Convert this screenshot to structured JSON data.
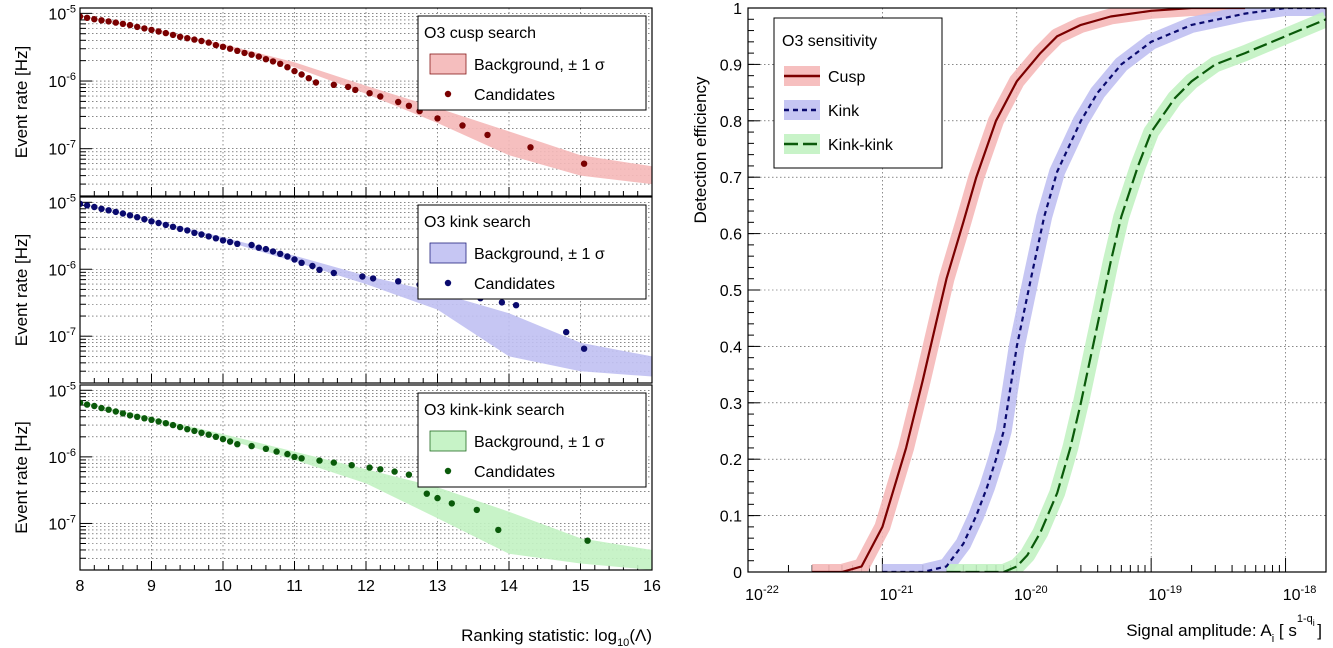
{
  "chart_data": [
    {
      "type": "scatter",
      "panel": "left",
      "xlabel": "Ranking statistic: log",
      "xlabel_sub": "10",
      "xlabel_tail": "(Λ)",
      "xlim": [
        8,
        16
      ],
      "x_ticks": [
        "8",
        "9",
        "10",
        "11",
        "12",
        "13",
        "14",
        "15",
        "16"
      ],
      "ylabel": "Event rate [Hz]",
      "yscale": "log",
      "ylim": [
        2e-08,
        1.2e-05
      ],
      "y_tick_base": "10",
      "y_tick_exps": [
        "-5",
        "-6",
        "-7"
      ],
      "grid": true,
      "subplots": [
        {
          "name": "cusp",
          "legend_title": "O3 cusp search",
          "band_label": "Background, ± 1 σ",
          "points_label": "Candidates",
          "color": "#7a0000",
          "band_color": "#f5b8b8",
          "points": [
            [
              8.0,
              9e-06
            ],
            [
              8.1,
              8.6e-06
            ],
            [
              8.2,
              8.2e-06
            ],
            [
              8.3,
              7.9e-06
            ],
            [
              8.4,
              7.6e-06
            ],
            [
              8.5,
              7.3e-06
            ],
            [
              8.6,
              7e-06
            ],
            [
              8.7,
              6.7e-06
            ],
            [
              8.8,
              6.3e-06
            ],
            [
              8.9,
              6e-06
            ],
            [
              9.0,
              5.7e-06
            ],
            [
              9.1,
              5.4e-06
            ],
            [
              9.2,
              5.1e-06
            ],
            [
              9.3,
              4.8e-06
            ],
            [
              9.4,
              4.5e-06
            ],
            [
              9.5,
              4.3e-06
            ],
            [
              9.6,
              4.1e-06
            ],
            [
              9.7,
              3.9e-06
            ],
            [
              9.8,
              3.7e-06
            ],
            [
              9.9,
              3.4e-06
            ],
            [
              10.0,
              3.2e-06
            ],
            [
              10.1,
              3e-06
            ],
            [
              10.2,
              2.8e-06
            ],
            [
              10.3,
              2.6e-06
            ],
            [
              10.4,
              2.45e-06
            ],
            [
              10.5,
              2.3e-06
            ],
            [
              10.6,
              2.1e-06
            ],
            [
              10.7,
              1.95e-06
            ],
            [
              10.8,
              1.8e-06
            ],
            [
              10.9,
              1.6e-06
            ],
            [
              11.0,
              1.4e-06
            ],
            [
              11.1,
              1.25e-06
            ],
            [
              11.2,
              1.1e-06
            ],
            [
              11.3,
              9.5e-07
            ],
            [
              11.55,
              8.8e-07
            ],
            [
              11.75,
              8.2e-07
            ],
            [
              11.85,
              7.4e-07
            ],
            [
              12.05,
              6.6e-07
            ],
            [
              12.2,
              5.9e-07
            ],
            [
              12.45,
              4.9e-07
            ],
            [
              12.6,
              4.3e-07
            ],
            [
              12.75,
              3.6e-07
            ],
            [
              13.0,
              2.8e-07
            ],
            [
              13.35,
              2.2e-07
            ],
            [
              13.7,
              1.6e-07
            ],
            [
              14.3,
              1.05e-07
            ],
            [
              15.05,
              6e-08
            ]
          ],
          "band_x": [
            8.0,
            9.0,
            10.0,
            11.0,
            12.0,
            13.0,
            14.0,
            15.0,
            16.0
          ],
          "band_lo": [
            9e-06,
            5.7e-06,
            3.2e-06,
            1.6e-06,
            6.5e-07,
            2.4e-07,
            8e-08,
            4e-08,
            3e-08
          ],
          "band_hi": [
            9.3e-06,
            6e-06,
            3.5e-06,
            1.9e-06,
            8.5e-07,
            4e-07,
            1.8e-07,
            8e-08,
            5.5e-08
          ]
        },
        {
          "name": "kink",
          "legend_title": "O3 kink search",
          "band_label": "Background, ± 1 σ",
          "points_label": "Candidates",
          "color": "#0a0a6e",
          "band_color": "#c0c0f2",
          "points": [
            [
              8.0,
              9.5e-06
            ],
            [
              8.1,
              9e-06
            ],
            [
              8.2,
              8.5e-06
            ],
            [
              8.3,
              8e-06
            ],
            [
              8.4,
              7.6e-06
            ],
            [
              8.5,
              7.2e-06
            ],
            [
              8.6,
              6.8e-06
            ],
            [
              8.7,
              6.4e-06
            ],
            [
              8.8,
              6e-06
            ],
            [
              8.9,
              5.6e-06
            ],
            [
              9.0,
              5.2e-06
            ],
            [
              9.1,
              4.9e-06
            ],
            [
              9.2,
              4.6e-06
            ],
            [
              9.3,
              4.3e-06
            ],
            [
              9.4,
              4e-06
            ],
            [
              9.5,
              3.8e-06
            ],
            [
              9.6,
              3.5e-06
            ],
            [
              9.7,
              3.3e-06
            ],
            [
              9.8,
              3.1e-06
            ],
            [
              9.9,
              2.9e-06
            ],
            [
              10.0,
              2.7e-06
            ],
            [
              10.1,
              2.55e-06
            ],
            [
              10.2,
              2.4e-06
            ],
            [
              10.4,
              2.3e-06
            ],
            [
              10.5,
              2.1e-06
            ],
            [
              10.6,
              2e-06
            ],
            [
              10.7,
              1.85e-06
            ],
            [
              10.8,
              1.7e-06
            ],
            [
              10.9,
              1.55e-06
            ],
            [
              11.0,
              1.4e-06
            ],
            [
              11.1,
              1.25e-06
            ],
            [
              11.25,
              1.12e-06
            ],
            [
              11.35,
              9.8e-07
            ],
            [
              11.55,
              8.8e-07
            ],
            [
              11.95,
              7.8e-07
            ],
            [
              12.1,
              7.3e-07
            ],
            [
              12.45,
              6.6e-07
            ],
            [
              12.75,
              5.9e-07
            ],
            [
              12.9,
              5.2e-07
            ],
            [
              13.2,
              4.7e-07
            ],
            [
              13.4,
              4.2e-07
            ],
            [
              13.6,
              3.7e-07
            ],
            [
              13.9,
              3.2e-07
            ],
            [
              14.1,
              2.9e-07
            ],
            [
              14.8,
              1.15e-07
            ],
            [
              15.05,
              6.5e-08
            ]
          ],
          "band_x": [
            8.0,
            9.0,
            10.0,
            11.0,
            12.0,
            13.0,
            14.0,
            15.0,
            16.0
          ],
          "band_lo": [
            9.5e-06,
            5.2e-06,
            2.7e-06,
            1.3e-06,
            6e-07,
            2.5e-07,
            5e-08,
            3e-08,
            2.5e-08
          ],
          "band_hi": [
            9.8e-06,
            5.5e-06,
            3e-06,
            1.6e-06,
            8e-07,
            4.5e-07,
            2.2e-07,
            8e-08,
            5e-08
          ]
        },
        {
          "name": "kink-kink",
          "legend_title": "O3 kink-kink search",
          "band_label": "Background, ± 1 σ",
          "points_label": "Candidates",
          "color": "#0a5a0a",
          "band_color": "#c2f2c2",
          "points": [
            [
              8.0,
              6.5e-06
            ],
            [
              8.1,
              6.1e-06
            ],
            [
              8.2,
              5.8e-06
            ],
            [
              8.3,
              5.4e-06
            ],
            [
              8.4,
              5.1e-06
            ],
            [
              8.5,
              4.8e-06
            ],
            [
              8.6,
              4.5e-06
            ],
            [
              8.7,
              4.2e-06
            ],
            [
              8.8,
              4e-06
            ],
            [
              8.9,
              3.8e-06
            ],
            [
              9.0,
              3.6e-06
            ],
            [
              9.1,
              3.4e-06
            ],
            [
              9.2,
              3.2e-06
            ],
            [
              9.3,
              3e-06
            ],
            [
              9.4,
              2.8e-06
            ],
            [
              9.5,
              2.6e-06
            ],
            [
              9.6,
              2.45e-06
            ],
            [
              9.7,
              2.3e-06
            ],
            [
              9.8,
              2.15e-06
            ],
            [
              9.9,
              2e-06
            ],
            [
              10.0,
              1.85e-06
            ],
            [
              10.1,
              1.7e-06
            ],
            [
              10.2,
              1.55e-06
            ],
            [
              10.4,
              1.45e-06
            ],
            [
              10.6,
              1.32e-06
            ],
            [
              10.75,
              1.2e-06
            ],
            [
              10.9,
              1.1e-06
            ],
            [
              11.0,
              1e-06
            ],
            [
              11.1,
              9.5e-07
            ],
            [
              11.35,
              8.8e-07
            ],
            [
              11.55,
              8.2e-07
            ],
            [
              11.8,
              7.5e-07
            ],
            [
              12.05,
              6.9e-07
            ],
            [
              12.2,
              6.5e-07
            ],
            [
              12.4,
              6e-07
            ],
            [
              12.6,
              5.4e-07
            ],
            [
              12.85,
              2.8e-07
            ],
            [
              13.0,
              2.4e-07
            ],
            [
              13.2,
              2e-07
            ],
            [
              13.55,
              1.6e-07
            ],
            [
              13.85,
              8e-08
            ],
            [
              15.1,
              5.5e-08
            ]
          ],
          "band_x": [
            8.0,
            9.0,
            10.0,
            11.0,
            12.0,
            13.0,
            14.0,
            15.0,
            16.0
          ],
          "band_lo": [
            6.5e-06,
            3.6e-06,
            1.9e-06,
            9e-07,
            4e-07,
            1.2e-07,
            3.5e-08,
            2.5e-08,
            2e-08
          ],
          "band_hi": [
            6.8e-06,
            3.9e-06,
            2.2e-06,
            1.2e-06,
            6.5e-07,
            3.5e-07,
            1.5e-07,
            6e-08,
            4e-08
          ]
        }
      ]
    },
    {
      "type": "line",
      "panel": "right",
      "legend_title": "O3 sensitivity",
      "xlabel": "Signal amplitude: A",
      "xlabel_sub": "i",
      "xlabel_unit": "[ s",
      "xlabel_sup": "1-q",
      "xlabel_sup_sub": "i",
      "xlabel_close": "]",
      "ylabel": "Detection efficiency",
      "xscale": "log",
      "xlim": [
        1e-22,
        2e-18
      ],
      "ylim": [
        0,
        1
      ],
      "x_tick_base": "10",
      "x_tick_exps": [
        "-22",
        "-21",
        "-20",
        "-19",
        "-18"
      ],
      "y_ticks": [
        "0",
        "0.1",
        "0.2",
        "0.3",
        "0.4",
        "0.5",
        "0.6",
        "0.7",
        "0.8",
        "0.9",
        "1"
      ],
      "grid": true,
      "series": [
        {
          "name": "Cusp",
          "color": "#7a0000",
          "band_color": "#f5b8b8",
          "dash": "solid",
          "x": [
            3e-22,
            5e-22,
            7e-22,
            1e-21,
            1.5e-21,
            2e-21,
            2.5e-21,
            3e-21,
            4e-21,
            5e-21,
            7e-21,
            1e-20,
            1.5e-20,
            2e-20,
            3e-20,
            5e-20,
            1e-19,
            2e-19,
            5e-19
          ],
          "y": [
            0,
            0,
            0.01,
            0.08,
            0.22,
            0.34,
            0.44,
            0.52,
            0.62,
            0.7,
            0.8,
            0.87,
            0.92,
            0.95,
            0.97,
            0.985,
            0.995,
            1.0,
            1.0
          ]
        },
        {
          "name": "Kink",
          "color": "#0a0a6e",
          "band_color": "#c0c0f2",
          "dash": "5,4",
          "x": [
            1e-21,
            2e-21,
            3e-21,
            4e-21,
            5e-21,
            6e-21,
            7e-21,
            8e-21,
            1e-20,
            1.3e-20,
            1.6e-20,
            2e-20,
            3e-20,
            4e-20,
            6e-20,
            1e-19,
            2e-19,
            5e-19,
            1e-18,
            2e-18
          ],
          "y": [
            0,
            0,
            0.01,
            0.05,
            0.1,
            0.15,
            0.2,
            0.25,
            0.4,
            0.53,
            0.63,
            0.71,
            0.8,
            0.85,
            0.9,
            0.94,
            0.97,
            0.99,
            1.0,
            1.0
          ]
        },
        {
          "name": "Kink-kink",
          "color": "#0a5a0a",
          "band_color": "#c2f2c2",
          "dash": "14,5",
          "x": [
            3e-21,
            6e-21,
            8e-21,
            1e-20,
            1.2e-20,
            1.5e-20,
            2e-20,
            2.5e-20,
            3e-20,
            4e-20,
            5e-20,
            6e-20,
            8e-20,
            1e-19,
            1.5e-19,
            2e-19,
            3e-19,
            5e-19,
            1e-18,
            2e-18
          ],
          "y": [
            0,
            0,
            0.0,
            0.01,
            0.03,
            0.07,
            0.14,
            0.22,
            0.3,
            0.44,
            0.55,
            0.63,
            0.72,
            0.78,
            0.84,
            0.87,
            0.9,
            0.92,
            0.95,
            0.98
          ]
        }
      ]
    }
  ]
}
